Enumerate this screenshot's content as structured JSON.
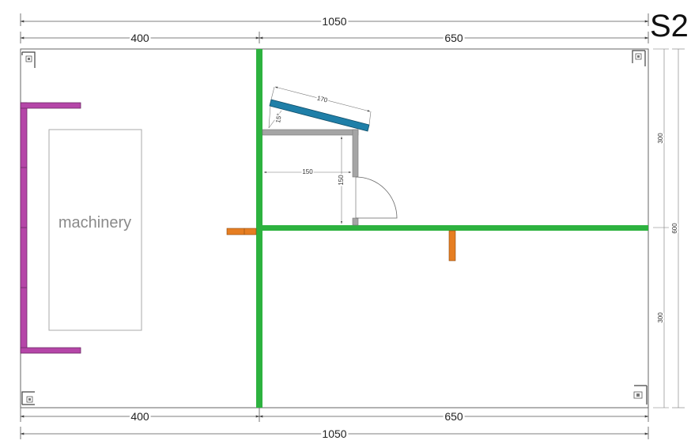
{
  "sheet_id": "S2",
  "dimensions": {
    "top_total": "1050",
    "top_left": "400",
    "top_right": "650",
    "bottom_left": "400",
    "bottom_right": "650",
    "bottom_total": "1050",
    "right_total": "600",
    "right_upper": "300",
    "right_lower": "300",
    "room_width": "150",
    "room_height": "150",
    "panel_length": "170",
    "panel_angle": "15°"
  },
  "labels": {
    "machinery": "machinery"
  },
  "colors": {
    "wall_green": "#2db23f",
    "purple_rack": "#b546a8",
    "orange_post": "#e67e22",
    "blue_panel": "#1f7fa8",
    "gray_room": "#a5a5a5",
    "outline": "#666666"
  },
  "icons": [
    "column-icon-top-left",
    "column-icon-top-right",
    "column-icon-bottom-left",
    "column-icon-bottom-right"
  ]
}
